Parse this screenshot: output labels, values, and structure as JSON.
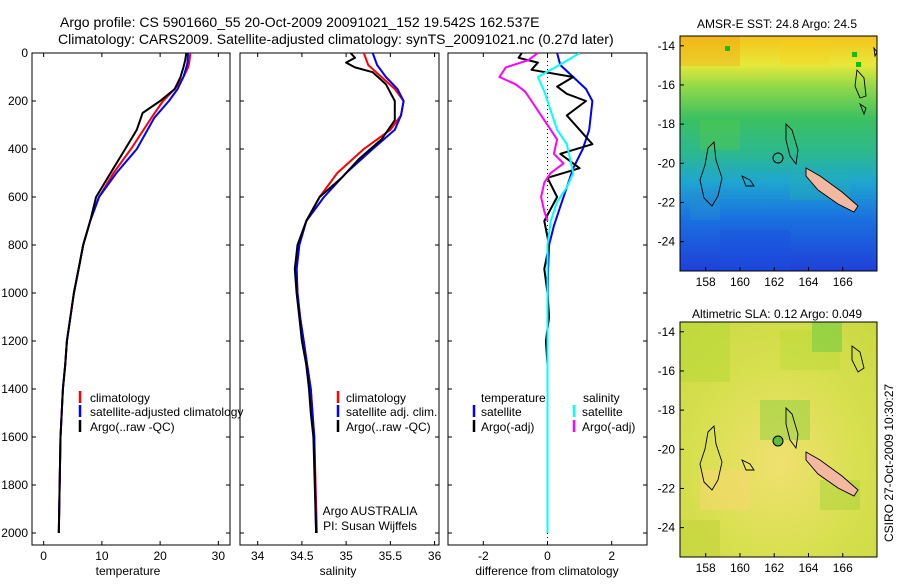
{
  "title": {
    "line1": "Argo profile: CS 5901660_55 20-Oct-2009 20091021_152 19.542S 162.537E",
    "line2": "Climatology: CARS2009. Satellite-adjusted climatology: synTS_20091021.nc (0.27d later)"
  },
  "side_label": "CSIRO 27-Oct-2009 10:30:27",
  "chart_data": [
    {
      "id": "temperature",
      "type": "line",
      "xlabel": "temperature",
      "ylabel": "",
      "xlim": [
        -2,
        32
      ],
      "ylim": [
        2050,
        0
      ],
      "xticks": [
        0,
        10,
        20,
        30
      ],
      "yticks": [
        0,
        200,
        400,
        600,
        800,
        1000,
        1200,
        1400,
        1600,
        1800,
        2000
      ],
      "legend": [
        "climatology",
        "satellite-adjusted climatology",
        "Argo(..raw -QC)"
      ],
      "series": [
        {
          "name": "climatology",
          "color": "#ff0000",
          "x": [
            25.2,
            25.0,
            24.8,
            24.0,
            22.5,
            20.5,
            18.5,
            15.0,
            12.0,
            9.5,
            8.0,
            6.8,
            6.0,
            5.2,
            4.6,
            4.0,
            3.7,
            3.3,
            3.1,
            2.9,
            2.6
          ],
          "y": [
            0,
            40,
            60,
            100,
            150,
            200,
            270,
            400,
            500,
            600,
            700,
            800,
            900,
            1000,
            1100,
            1200,
            1300,
            1400,
            1500,
            1600,
            2000
          ]
        },
        {
          "name": "satellite-adjusted climatology",
          "color": "#0000ff",
          "x": [
            24.8,
            24.7,
            24.5,
            24.0,
            23.0,
            21.5,
            19.0,
            16.0,
            12.5,
            9.5,
            8.0,
            6.8,
            6.0,
            5.2,
            4.6,
            4.0,
            3.7,
            3.3,
            3.1,
            2.9,
            2.6
          ],
          "y": [
            0,
            40,
            60,
            100,
            150,
            200,
            270,
            400,
            500,
            600,
            700,
            800,
            900,
            1000,
            1100,
            1200,
            1300,
            1400,
            1500,
            1600,
            2000
          ]
        },
        {
          "name": "Argo(..raw -QC)",
          "color": "#000000",
          "x": [
            24.5,
            24.3,
            24.0,
            23.5,
            22.5,
            20.0,
            17.0,
            16.0,
            14.0,
            12.0,
            9.0,
            8.0,
            6.8,
            6.0,
            5.2,
            4.6,
            4.0,
            3.7,
            3.3,
            3.1,
            2.9,
            2.6
          ],
          "y": [
            0,
            30,
            60,
            100,
            150,
            200,
            250,
            320,
            400,
            480,
            600,
            700,
            800,
            900,
            1000,
            1100,
            1200,
            1300,
            1400,
            1500,
            1600,
            2000
          ]
        }
      ]
    },
    {
      "id": "salinity",
      "type": "line",
      "xlabel": "salinity",
      "xlim": [
        33.8,
        36.05
      ],
      "ylim": [
        2050,
        0
      ],
      "xticks": [
        34,
        34.5,
        35,
        35.5,
        36
      ],
      "yticks": [
        0,
        200,
        400,
        600,
        800,
        1000,
        1200,
        1400,
        1600,
        1800,
        2000
      ],
      "legend": [
        "climatology",
        "satellite adj. clim.",
        "Argo(..raw -QC)"
      ],
      "annotation": [
        "Argo AUSTRALIA",
        "PI: Susan Wijffels"
      ],
      "series": [
        {
          "name": "climatology",
          "color": "#ff0000",
          "x": [
            35.2,
            35.25,
            35.4,
            35.55,
            35.65,
            35.62,
            35.5,
            35.2,
            34.9,
            34.7,
            34.55,
            34.47,
            34.44,
            34.45,
            34.48,
            34.52,
            34.56,
            34.6,
            34.62,
            34.64,
            34.67
          ],
          "y": [
            0,
            50,
            100,
            150,
            200,
            260,
            320,
            400,
            500,
            600,
            700,
            800,
            900,
            1000,
            1100,
            1200,
            1300,
            1400,
            1500,
            1600,
            2000
          ]
        },
        {
          "name": "satellite adj. clim.",
          "color": "#0000ff",
          "x": [
            35.3,
            35.35,
            35.45,
            35.58,
            35.65,
            35.62,
            35.55,
            35.3,
            35.0,
            34.75,
            34.55,
            34.47,
            34.44,
            34.45,
            34.48,
            34.52,
            34.56,
            34.6,
            34.62,
            34.64,
            34.66
          ],
          "y": [
            0,
            50,
            100,
            150,
            200,
            260,
            320,
            400,
            500,
            600,
            700,
            800,
            900,
            1000,
            1100,
            1200,
            1300,
            1400,
            1500,
            1600,
            2000
          ]
        },
        {
          "name": "Argo(..raw -QC)",
          "color": "#000000",
          "x": [
            35.05,
            35.1,
            35.0,
            35.1,
            35.3,
            35.45,
            35.55,
            35.55,
            35.4,
            35.15,
            34.95,
            34.7,
            34.55,
            34.45,
            34.42,
            34.44,
            34.47,
            34.5,
            34.55,
            34.58,
            34.6,
            34.63,
            34.66
          ],
          "y": [
            0,
            20,
            40,
            60,
            80,
            130,
            200,
            280,
            360,
            440,
            520,
            600,
            700,
            800,
            900,
            1000,
            1100,
            1200,
            1300,
            1400,
            1500,
            1600,
            2000
          ]
        }
      ]
    },
    {
      "id": "difference",
      "type": "line",
      "xlabel": "difference from climatology",
      "xlim": [
        -3.1,
        3.1
      ],
      "ylim": [
        2050,
        0
      ],
      "xticks": [
        -2,
        0,
        2
      ],
      "yticks": [
        0,
        200,
        400,
        600,
        800,
        1000,
        1200,
        1400,
        1600,
        1800,
        2000
      ],
      "legend_temp_title": "temperature",
      "legend_sal_title": "salinity",
      "legend_temp": [
        "satellite",
        "Argo(-adj)"
      ],
      "legend_sal": [
        "satellite",
        "Argo(-adj)"
      ],
      "series": [
        {
          "name": "temperature satellite",
          "color": "#0000ff",
          "x": [
            0.3,
            0.4,
            0.8,
            1.2,
            1.4,
            1.35,
            1.3,
            1.1,
            0.8,
            0.6,
            0.4,
            0.2,
            0.05,
            0.02,
            0.0,
            0.0
          ],
          "y": [
            0,
            50,
            100,
            150,
            200,
            260,
            320,
            400,
            480,
            560,
            640,
            720,
            800,
            900,
            1100,
            2000
          ]
        },
        {
          "name": "temperature Argo(-adj)",
          "color": "#000000",
          "x": [
            -0.8,
            -0.9,
            -0.3,
            -0.5,
            0.8,
            0.3,
            0.6,
            1.2,
            0.6,
            1.4,
            0.4,
            1.0,
            0.0,
            0.3,
            -0.1,
            0.05,
            -0.1,
            0.0,
            0.05,
            -0.05,
            0.0,
            0.0
          ],
          "y": [
            0,
            20,
            40,
            70,
            100,
            140,
            170,
            200,
            260,
            380,
            420,
            480,
            520,
            600,
            700,
            800,
            900,
            1000,
            1100,
            1200,
            1300,
            1350
          ]
        },
        {
          "name": "salinity satellite",
          "color": "#00ffff",
          "x": [
            1.0,
            0.5,
            -0.3,
            -0.1,
            0.1,
            0.3,
            0.6,
            0.7,
            0.8,
            0.6,
            0.3,
            0.1,
            0.0,
            0.0
          ],
          "y": [
            0,
            40,
            100,
            160,
            240,
            320,
            380,
            440,
            500,
            560,
            620,
            700,
            800,
            2000
          ]
        },
        {
          "name": "salinity Argo(-adj)",
          "color": "#ff00ff",
          "x": [
            -0.3,
            -0.6,
            -1.3,
            -1.5,
            -1.0,
            -0.7,
            -0.5,
            -0.2,
            0.3,
            0.2,
            0.5,
            0.1,
            -0.1,
            -0.2,
            -0.1,
            0.0
          ],
          "y": [
            0,
            30,
            60,
            100,
            130,
            160,
            200,
            260,
            360,
            420,
            460,
            500,
            540,
            600,
            660,
            700
          ]
        }
      ]
    }
  ],
  "maps": [
    {
      "title": "AMSR-E SST: 24.8 Argo: 24.5",
      "lon_ticks": [
        158,
        160,
        162,
        164,
        166
      ],
      "lat_ticks": [
        -14,
        -16,
        -18,
        -20,
        -22,
        -24
      ],
      "lon_range": [
        156.5,
        168
      ],
      "lat_range": [
        -25.5,
        -13.5
      ]
    },
    {
      "title": "Altimetric SLA: 0.12 Argo: 0.049",
      "lon_ticks": [
        158,
        160,
        162,
        164,
        166
      ],
      "lat_ticks": [
        -14,
        -16,
        -18,
        -20,
        -22,
        -24
      ],
      "lon_range": [
        156.5,
        168
      ],
      "lat_range": [
        -25.5,
        -13.5
      ]
    }
  ]
}
